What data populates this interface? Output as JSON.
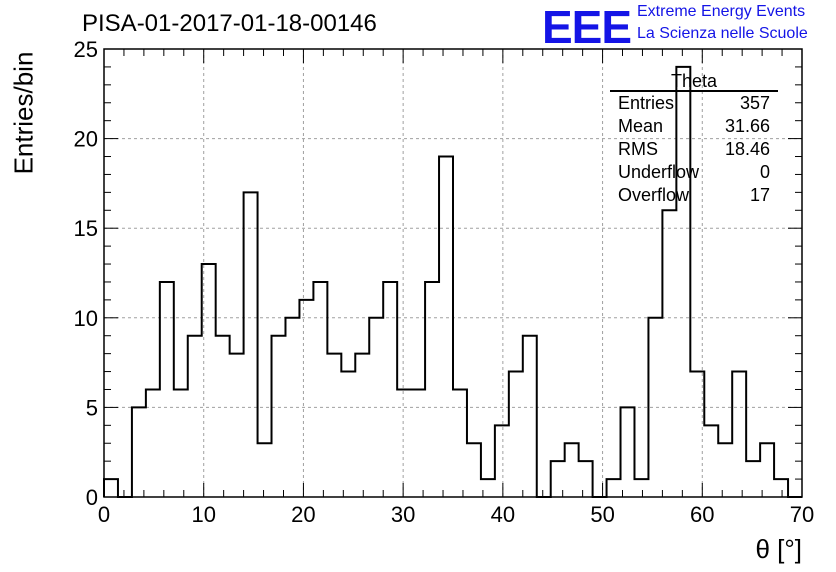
{
  "header": {
    "run_title": "PISA-01-2017-01-18-00146",
    "logo_text": "EEE",
    "logo_line1": "Extreme Energy Events",
    "logo_line2": "La Scienza nelle Scuole"
  },
  "stats": {
    "title": "Theta",
    "rows": [
      {
        "label": "Entries",
        "value": "357"
      },
      {
        "label": "Mean",
        "value": "31.66"
      },
      {
        "label": "RMS",
        "value": "18.46"
      },
      {
        "label": "Underflow",
        "value": "0"
      },
      {
        "label": "Overflow",
        "value": "17"
      }
    ]
  },
  "colors": {
    "histogram_line": "#000000",
    "grid": "#a0a0a0",
    "logo": "#1414e6"
  },
  "chart_data": {
    "type": "bar",
    "title": "PISA-01-2017-01-18-00146",
    "xlabel": "θ [°]",
    "ylabel": "Entries/bin",
    "xlim": [
      0,
      70
    ],
    "ylim": [
      0,
      25
    ],
    "x_ticks": [
      0,
      10,
      20,
      30,
      40,
      50,
      60,
      70
    ],
    "y_ticks": [
      0,
      5,
      10,
      15,
      20,
      25
    ],
    "grid": true,
    "bin_width": 1.4,
    "bin_edges_start": 0,
    "values": [
      1,
      0,
      5,
      6,
      12,
      6,
      9,
      13,
      9,
      8,
      17,
      3,
      9,
      10,
      11,
      12,
      8,
      7,
      8,
      10,
      12,
      6,
      6,
      12,
      19,
      6,
      3,
      1,
      4,
      7,
      9,
      0,
      2,
      3,
      2,
      0,
      1,
      5,
      1,
      10,
      16,
      24,
      7,
      4,
      3,
      7,
      2,
      3,
      1,
      0
    ]
  }
}
